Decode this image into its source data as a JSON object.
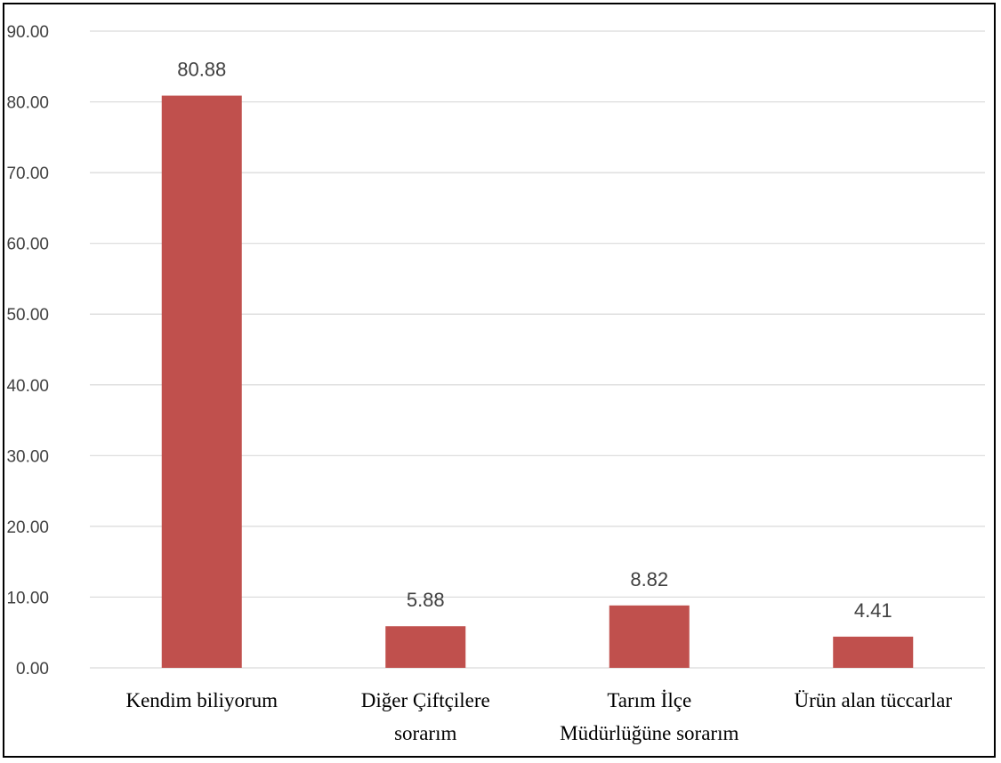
{
  "chart_data": {
    "type": "bar",
    "categories": [
      [
        "Kendim biliyorum"
      ],
      [
        "Diğer Çiftçilere",
        "sorarım"
      ],
      [
        "Tarım İlçe",
        "Müdürlüğüne sorarım"
      ],
      [
        "Ürün alan tüccarlar"
      ]
    ],
    "values": [
      80.88,
      5.88,
      8.82,
      4.41
    ],
    "data_labels": [
      "80.88",
      "5.88",
      "8.82",
      "4.41"
    ],
    "title": "",
    "xlabel": "",
    "ylabel": "",
    "ylim": [
      0,
      90
    ],
    "yticks": [
      "0.00",
      "10.00",
      "20.00",
      "30.00",
      "40.00",
      "50.00",
      "60.00",
      "70.00",
      "80.00",
      "90.00"
    ],
    "grid": true,
    "legend": "none",
    "bar_color": "#c0504d",
    "grid_color": "#d9d9d9"
  }
}
